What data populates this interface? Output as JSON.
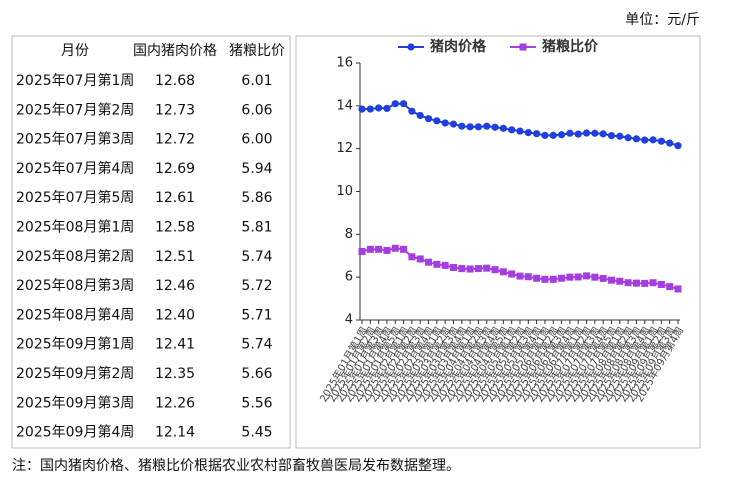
{
  "unit": "单位：元/斤",
  "note": "注：国内猪肉价格、猪粮比价根据农业农村部畜牧兽医局发布数据整理。",
  "table": {
    "columns": [
      "月份",
      "国内猪肉价格",
      "猪粮比价"
    ],
    "rows": [
      [
        "2025年07月第1周",
        "12.68",
        "6.01"
      ],
      [
        "2025年07月第2周",
        "12.73",
        "6.06"
      ],
      [
        "2025年07月第3周",
        "12.72",
        "6.00"
      ],
      [
        "2025年07月第4周",
        "12.69",
        "5.94"
      ],
      [
        "2025年07月第5周",
        "12.61",
        "5.86"
      ],
      [
        "2025年08月第1周",
        "12.58",
        "5.81"
      ],
      [
        "2025年08月第2周",
        "12.51",
        "5.74"
      ],
      [
        "2025年08月第3周",
        "12.46",
        "5.72"
      ],
      [
        "2025年08月第4周",
        "12.40",
        "5.71"
      ],
      [
        "2025年09月第1周",
        "12.41",
        "5.74"
      ],
      [
        "2025年09月第2周",
        "12.35",
        "5.66"
      ],
      [
        "2025年09月第3周",
        "12.26",
        "5.56"
      ],
      [
        "2025年09月第4周",
        "12.14",
        "5.45"
      ]
    ]
  },
  "chart_data": {
    "type": "line",
    "categories": [
      "2025年01月第1周",
      "2025年01月第2周",
      "2025年01月第3周",
      "2025年01月第4周",
      "2025年01月第5周",
      "2025年02月第1周",
      "2025年02月第2周",
      "2025年02月第3周",
      "2025年02月第4周",
      "2025年03月第1周",
      "2025年03月第2周",
      "2025年03月第3周",
      "2025年03月第4周",
      "2025年04月第1周",
      "2025年04月第2周",
      "2025年04月第3周",
      "2025年04月第4周",
      "2025年04月第5周",
      "2025年05月第1周",
      "2025年05月第2周",
      "2025年05月第3周",
      "2025年05月第4周",
      "2025年06月第1周",
      "2025年06月第2周",
      "2025年06月第3周",
      "2025年06月第4周",
      "2025年07月第1周",
      "2025年07月第2周",
      "2025年07月第3周",
      "2025年07月第4周",
      "2025年07月第5周",
      "2025年08月第1周",
      "2025年08月第2周",
      "2025年08月第3周",
      "2025年08月第4周",
      "2025年09月第1周",
      "2025年09月第2周",
      "2025年09月第3周",
      "2025年09月第4周"
    ],
    "series": [
      {
        "name": "猪肉价格",
        "color": "#1f3fe0",
        "marker": "circle",
        "values": [
          13.85,
          13.85,
          13.9,
          13.88,
          14.1,
          14.1,
          13.75,
          13.55,
          13.4,
          13.3,
          13.2,
          13.15,
          13.05,
          13.02,
          13.02,
          13.05,
          13.0,
          12.95,
          12.88,
          12.82,
          12.75,
          12.7,
          12.62,
          12.62,
          12.65,
          12.72,
          12.68,
          12.73,
          12.72,
          12.69,
          12.61,
          12.58,
          12.51,
          12.46,
          12.4,
          12.41,
          12.35,
          12.26,
          12.14
        ]
      },
      {
        "name": "猪粮比价",
        "color": "#a43ee0",
        "marker": "square",
        "values": [
          7.2,
          7.3,
          7.3,
          7.25,
          7.35,
          7.3,
          6.95,
          6.85,
          6.7,
          6.6,
          6.55,
          6.45,
          6.4,
          6.38,
          6.4,
          6.42,
          6.35,
          6.25,
          6.15,
          6.05,
          6.02,
          5.95,
          5.9,
          5.9,
          5.95,
          6.0,
          6.01,
          6.06,
          6.0,
          5.94,
          5.86,
          5.81,
          5.74,
          5.72,
          5.71,
          5.74,
          5.66,
          5.56,
          5.45
        ]
      }
    ],
    "ylim": [
      4,
      16
    ],
    "yticks": [
      4,
      6,
      8,
      10,
      12,
      14,
      16
    ],
    "grid": false
  }
}
